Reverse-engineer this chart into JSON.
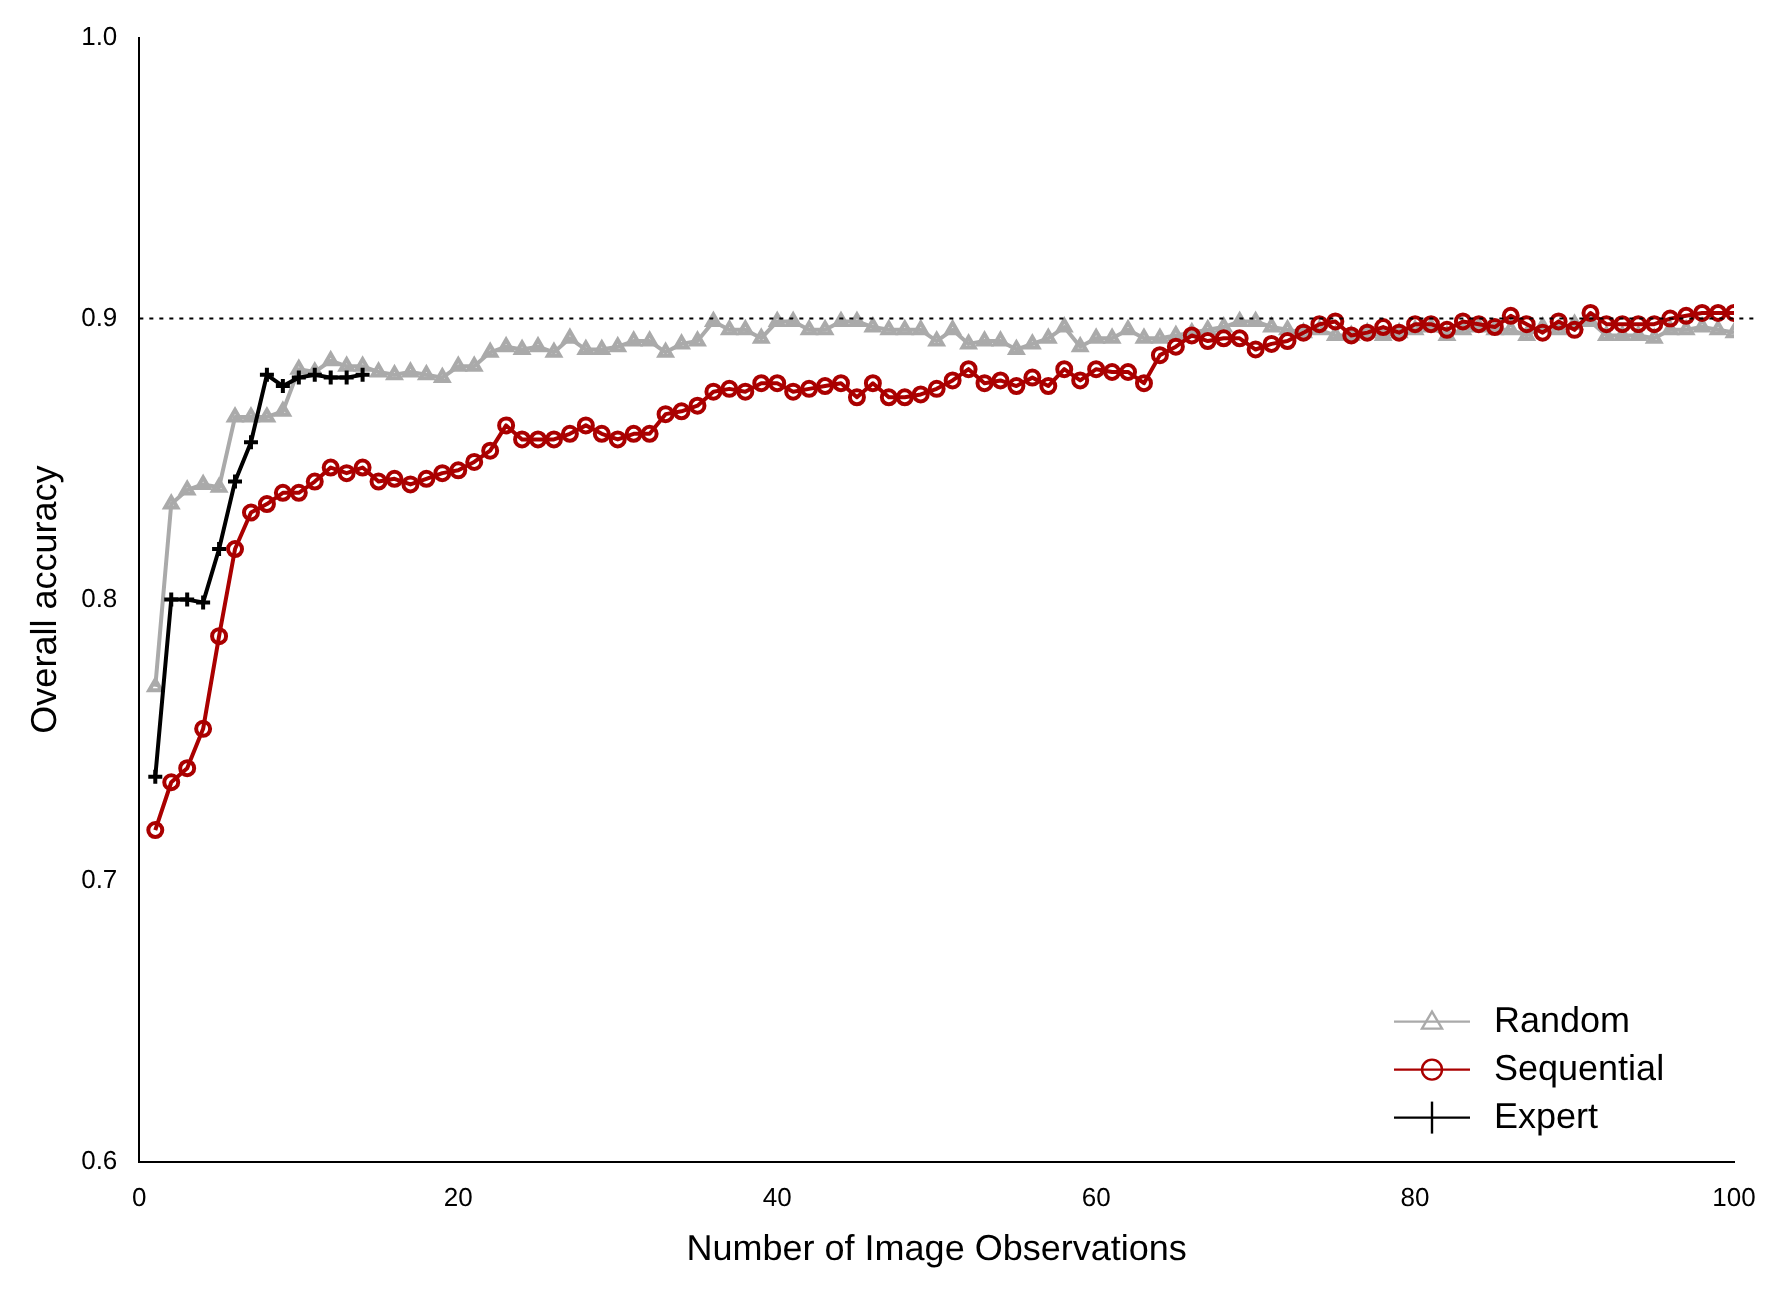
{
  "chart_data": {
    "type": "line",
    "xlabel": "Number of Image Observations",
    "ylabel": "Overall accuracy",
    "xlim": [
      0,
      100
    ],
    "xticks": [
      0,
      20,
      40,
      60,
      80,
      100
    ],
    "ylim": [
      0.6,
      1.0
    ],
    "yticks": [
      0.6,
      0.7,
      0.8,
      0.9,
      {
        "value": 1,
        "label": "1.0"
      }
    ],
    "grid": false,
    "legend": "bottom right",
    "ref_lines": [
      {
        "axis": "y",
        "value": 0.9,
        "color": "#000000",
        "line_style": "dotted"
      }
    ],
    "series": [
      {
        "name": "Random",
        "color": "#aaaaaa",
        "marker": "triangle",
        "x": [
          1,
          2,
          3,
          4,
          5,
          6,
          7,
          8,
          9,
          10,
          11,
          12,
          13,
          14,
          15,
          16,
          17,
          18,
          19,
          20,
          21,
          22,
          23,
          24,
          25,
          26,
          27,
          28,
          29,
          30,
          31,
          32,
          33,
          34,
          35,
          36,
          37,
          38,
          39,
          40,
          41,
          42,
          43,
          44,
          45,
          46,
          47,
          48,
          49,
          50,
          51,
          52,
          53,
          54,
          55,
          56,
          57,
          58,
          59,
          60,
          61,
          62,
          63,
          64,
          65,
          66,
          67,
          68,
          69,
          70,
          71,
          72,
          73,
          74,
          75,
          76,
          77,
          78,
          79,
          80,
          81,
          82,
          83,
          84,
          85,
          86,
          87,
          88,
          89,
          90,
          91,
          92,
          93,
          94,
          95,
          96,
          97,
          98,
          99,
          100
        ],
        "values": [
          0.769,
          0.834,
          0.839,
          0.841,
          0.84,
          0.865,
          0.865,
          0.865,
          0.867,
          0.882,
          0.881,
          0.885,
          0.883,
          0.883,
          0.881,
          0.88,
          0.881,
          0.88,
          0.879,
          0.883,
          0.883,
          0.888,
          0.89,
          0.889,
          0.89,
          0.888,
          0.893,
          0.889,
          0.889,
          0.89,
          0.892,
          0.892,
          0.888,
          0.891,
          0.892,
          0.899,
          0.896,
          0.896,
          0.893,
          0.899,
          0.899,
          0.896,
          0.896,
          0.899,
          0.899,
          0.897,
          0.896,
          0.896,
          0.896,
          0.892,
          0.896,
          0.891,
          0.892,
          0.892,
          0.889,
          0.891,
          0.893,
          0.897,
          0.89,
          0.893,
          0.893,
          0.896,
          0.893,
          0.893,
          0.894,
          0.895,
          0.896,
          0.897,
          0.899,
          0.899,
          0.897,
          0.896,
          0.895,
          0.896,
          0.894,
          0.894,
          0.895,
          0.894,
          0.895,
          0.896,
          0.897,
          0.894,
          0.896,
          0.897,
          0.896,
          0.896,
          0.894,
          0.897,
          0.896,
          0.898,
          0.899,
          0.894,
          0.894,
          0.894,
          0.893,
          0.896,
          0.896,
          0.897,
          0.896,
          0.895
        ]
      },
      {
        "name": "Sequential",
        "color": "#aa0000",
        "marker": "circle",
        "x": [
          1,
          2,
          3,
          4,
          5,
          6,
          7,
          8,
          9,
          10,
          11,
          12,
          13,
          14,
          15,
          16,
          17,
          18,
          19,
          20,
          21,
          22,
          23,
          24,
          25,
          26,
          27,
          28,
          29,
          30,
          31,
          32,
          33,
          34,
          35,
          36,
          37,
          38,
          39,
          40,
          41,
          42,
          43,
          44,
          45,
          46,
          47,
          48,
          49,
          50,
          51,
          52,
          53,
          54,
          55,
          56,
          57,
          58,
          59,
          60,
          61,
          62,
          63,
          64,
          65,
          66,
          67,
          68,
          69,
          70,
          71,
          72,
          73,
          74,
          75,
          76,
          77,
          78,
          79,
          80,
          81,
          82,
          83,
          84,
          85,
          86,
          87,
          88,
          89,
          90,
          91,
          92,
          93,
          94,
          95,
          96,
          97,
          98,
          99,
          100
        ],
        "values": [
          0.718,
          0.735,
          0.74,
          0.754,
          0.787,
          0.818,
          0.831,
          0.834,
          0.838,
          0.838,
          0.842,
          0.847,
          0.845,
          0.847,
          0.842,
          0.843,
          0.841,
          0.843,
          0.845,
          0.846,
          0.849,
          0.853,
          0.862,
          0.857,
          0.857,
          0.857,
          0.859,
          0.862,
          0.859,
          0.857,
          0.859,
          0.859,
          0.866,
          0.867,
          0.869,
          0.874,
          0.875,
          0.874,
          0.877,
          0.877,
          0.874,
          0.875,
          0.876,
          0.877,
          0.872,
          0.877,
          0.872,
          0.872,
          0.873,
          0.875,
          0.878,
          0.882,
          0.877,
          0.878,
          0.876,
          0.879,
          0.876,
          0.882,
          0.878,
          0.882,
          0.881,
          0.881,
          0.877,
          0.887,
          0.89,
          0.894,
          0.892,
          0.893,
          0.893,
          0.889,
          0.891,
          0.892,
          0.895,
          0.898,
          0.899,
          0.894,
          0.895,
          0.897,
          0.895,
          0.898,
          0.898,
          0.896,
          0.899,
          0.898,
          0.897,
          0.901,
          0.898,
          0.895,
          0.899,
          0.896,
          0.902,
          0.898,
          0.898,
          0.898,
          0.898,
          0.9,
          0.901,
          0.902,
          0.902,
          0.902
        ]
      },
      {
        "name": "Expert",
        "color": "#000000",
        "marker": "cross",
        "x": [
          1,
          2,
          3,
          4,
          5,
          6,
          7,
          8,
          9,
          10,
          11,
          12,
          13,
          14
        ],
        "values": [
          0.737,
          0.8,
          0.8,
          0.799,
          0.818,
          0.842,
          0.856,
          0.88,
          0.876,
          0.879,
          0.88,
          0.879,
          0.879,
          0.88
        ]
      }
    ]
  }
}
